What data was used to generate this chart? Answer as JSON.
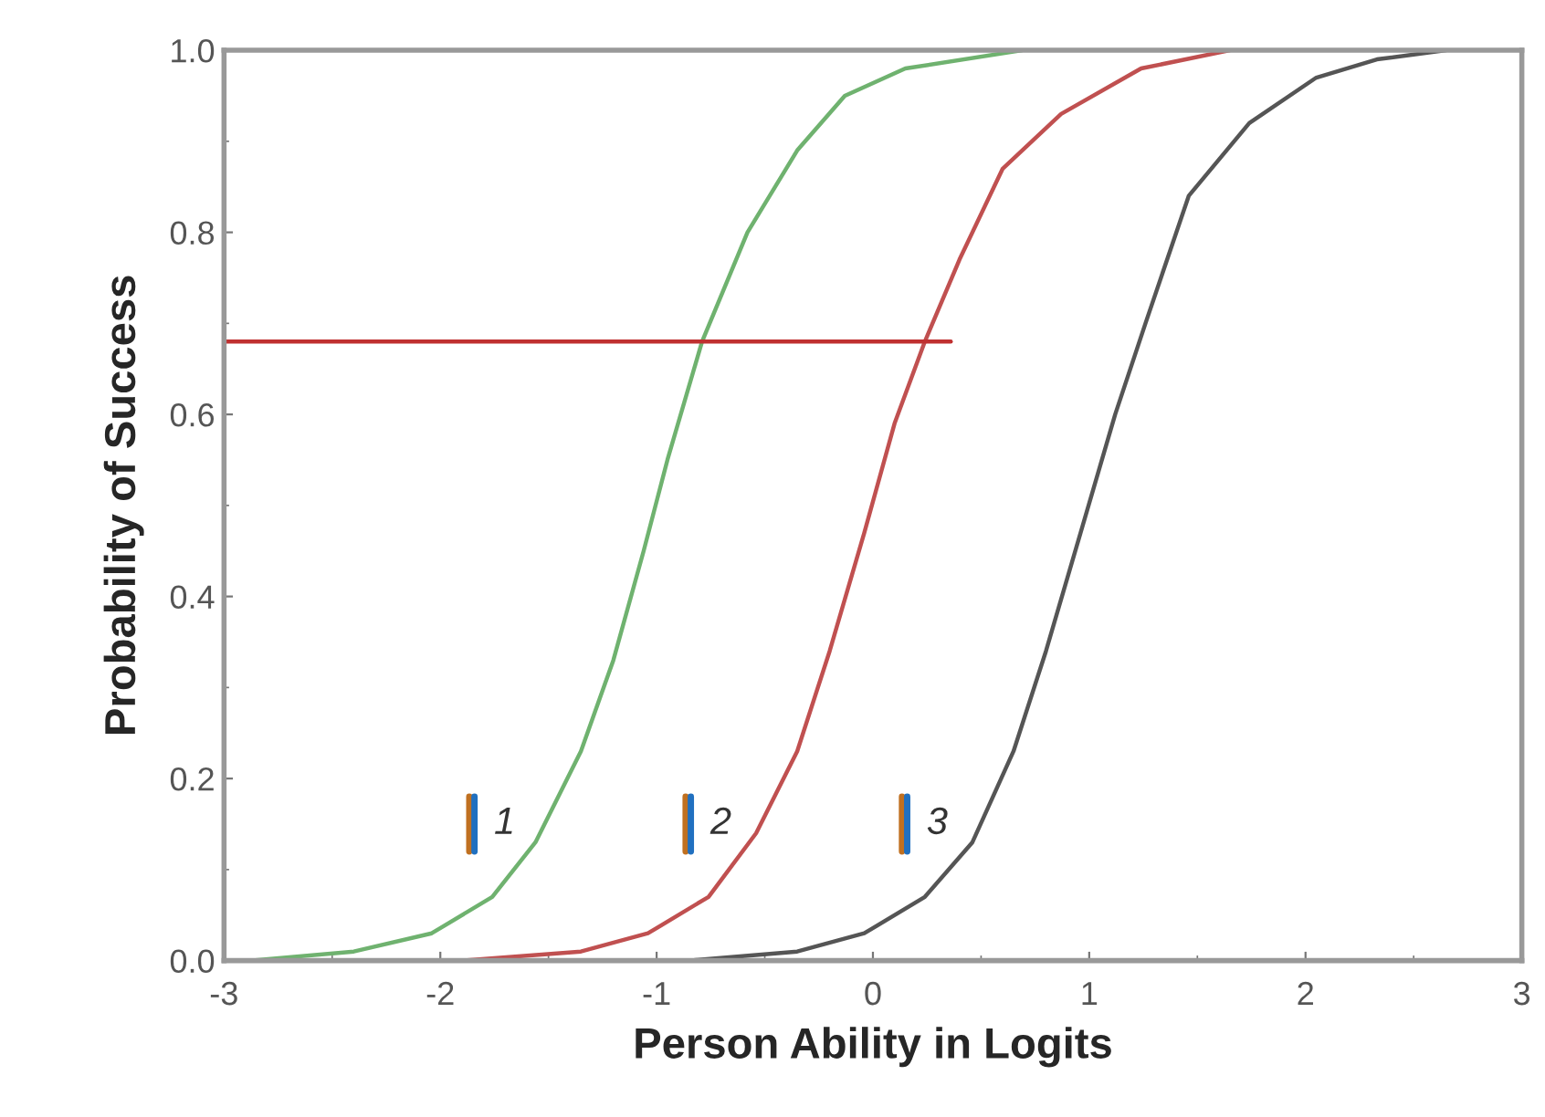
{
  "chart_data": {
    "type": "line",
    "xlabel": "Person Ability in Logits",
    "ylabel": "Probability of Success",
    "xlim": [
      -3,
      3
    ],
    "xticks": [
      -3,
      -2,
      -1,
      0,
      1,
      2,
      3
    ],
    "ylim": [
      0,
      1
    ],
    "yticks": [
      {
        "value": 0,
        "label": "0.0"
      },
      0.2,
      0.4,
      0.6,
      0.8,
      {
        "value": 1,
        "label": "1.0"
      }
    ],
    "series": [
      {
        "color": "#6fb26f",
        "x": [
          -2.88,
          -2.4,
          -2.04,
          -1.76,
          -1.56,
          -1.35,
          -1.2,
          -1.06,
          -0.95,
          -0.79,
          -0.58,
          -0.35,
          -0.13,
          0.15,
          0.69
        ],
        "values": [
          0.0,
          0.01,
          0.03,
          0.07,
          0.13,
          0.23,
          0.33,
          0.45,
          0.55,
          0.68,
          0.8,
          0.89,
          0.95,
          0.98,
          1.0
        ]
      },
      {
        "color": "#c05050",
        "x": [
          -1.9,
          -1.35,
          -1.04,
          -0.76,
          -0.54,
          -0.35,
          -0.2,
          -0.04,
          0.1,
          0.24,
          0.4,
          0.6,
          0.87,
          1.24,
          1.65
        ],
        "values": [
          0.0,
          0.01,
          0.03,
          0.07,
          0.14,
          0.23,
          0.34,
          0.47,
          0.59,
          0.68,
          0.77,
          0.87,
          0.93,
          0.98,
          1.0
        ]
      },
      {
        "color": "#555555",
        "x": [
          -0.85,
          -0.35,
          -0.04,
          0.24,
          0.46,
          0.65,
          0.8,
          0.96,
          1.12,
          1.26,
          1.46,
          1.74,
          2.05,
          2.33,
          2.65
        ],
        "values": [
          0.0,
          0.01,
          0.03,
          0.07,
          0.13,
          0.23,
          0.34,
          0.47,
          0.6,
          0.7,
          0.84,
          0.92,
          0.97,
          0.99,
          1.0
        ]
      },
      {
        "color": "#c03030",
        "x": [
          -3,
          0.36
        ],
        "values": [
          0.68,
          0.68
        ]
      }
    ],
    "annotations": [
      "1",
      "2",
      "3"
    ],
    "marker": "none",
    "line_style": "solid",
    "grid": false
  }
}
